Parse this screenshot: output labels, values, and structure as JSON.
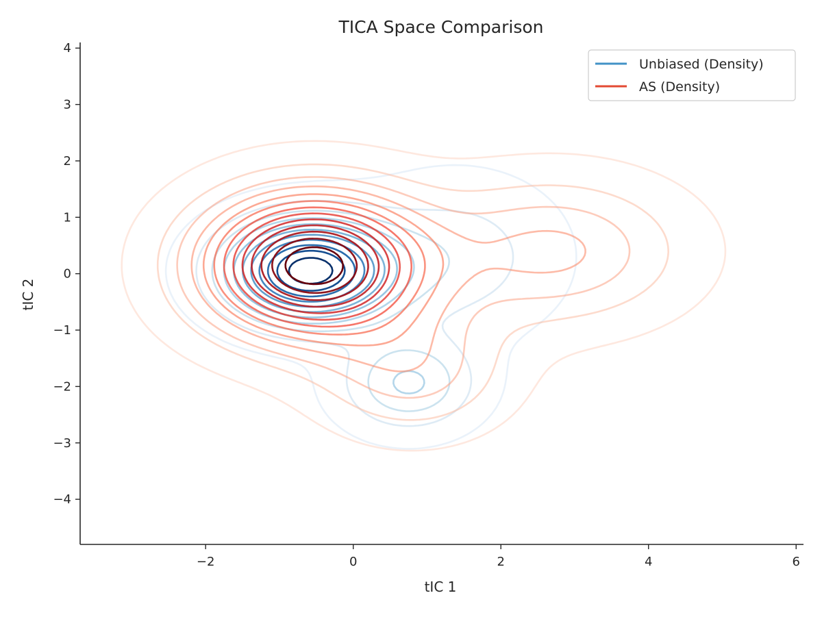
{
  "chart_data": {
    "type": "contour",
    "title": "TICA Space Comparison",
    "xlabel": "tIC 1",
    "ylabel": "tIC 2",
    "xlim": [
      -3.7,
      6.1
    ],
    "ylim": [
      -4.8,
      4.1
    ],
    "xticks": [
      -2,
      0,
      2,
      4,
      6
    ],
    "yticks": [
      -4,
      -3,
      -2,
      -1,
      0,
      1,
      2,
      3,
      4
    ],
    "grid": false,
    "legend_position": "top-right",
    "series": [
      {
        "name": "Unbiased (Density)",
        "color": "#4292c6",
        "colormap": "Blues",
        "components": [
          {
            "weight": 1.0,
            "center": [
              -0.6,
              0.05
            ],
            "sigma": [
              0.75,
              0.6
            ]
          },
          {
            "weight": 0.32,
            "center": [
              0.75,
              -1.95
            ],
            "sigma": [
              0.6,
              0.55
            ]
          },
          {
            "weight": 0.18,
            "center": [
              1.4,
              0.3
            ],
            "sigma": [
              0.9,
              0.9
            ]
          }
        ]
      },
      {
        "name": "AS (Density)",
        "color": "#e34a33",
        "colormap": "Reds",
        "components": [
          {
            "weight": 1.0,
            "center": [
              -0.55,
              0.15
            ],
            "sigma": [
              1.0,
              0.85
            ]
          },
          {
            "weight": 0.28,
            "center": [
              2.7,
              0.4
            ],
            "sigma": [
              1.15,
              0.85
            ]
          },
          {
            "weight": 0.22,
            "center": [
              0.8,
              -1.7
            ],
            "sigma": [
              0.85,
              0.75
            ]
          }
        ]
      }
    ]
  }
}
